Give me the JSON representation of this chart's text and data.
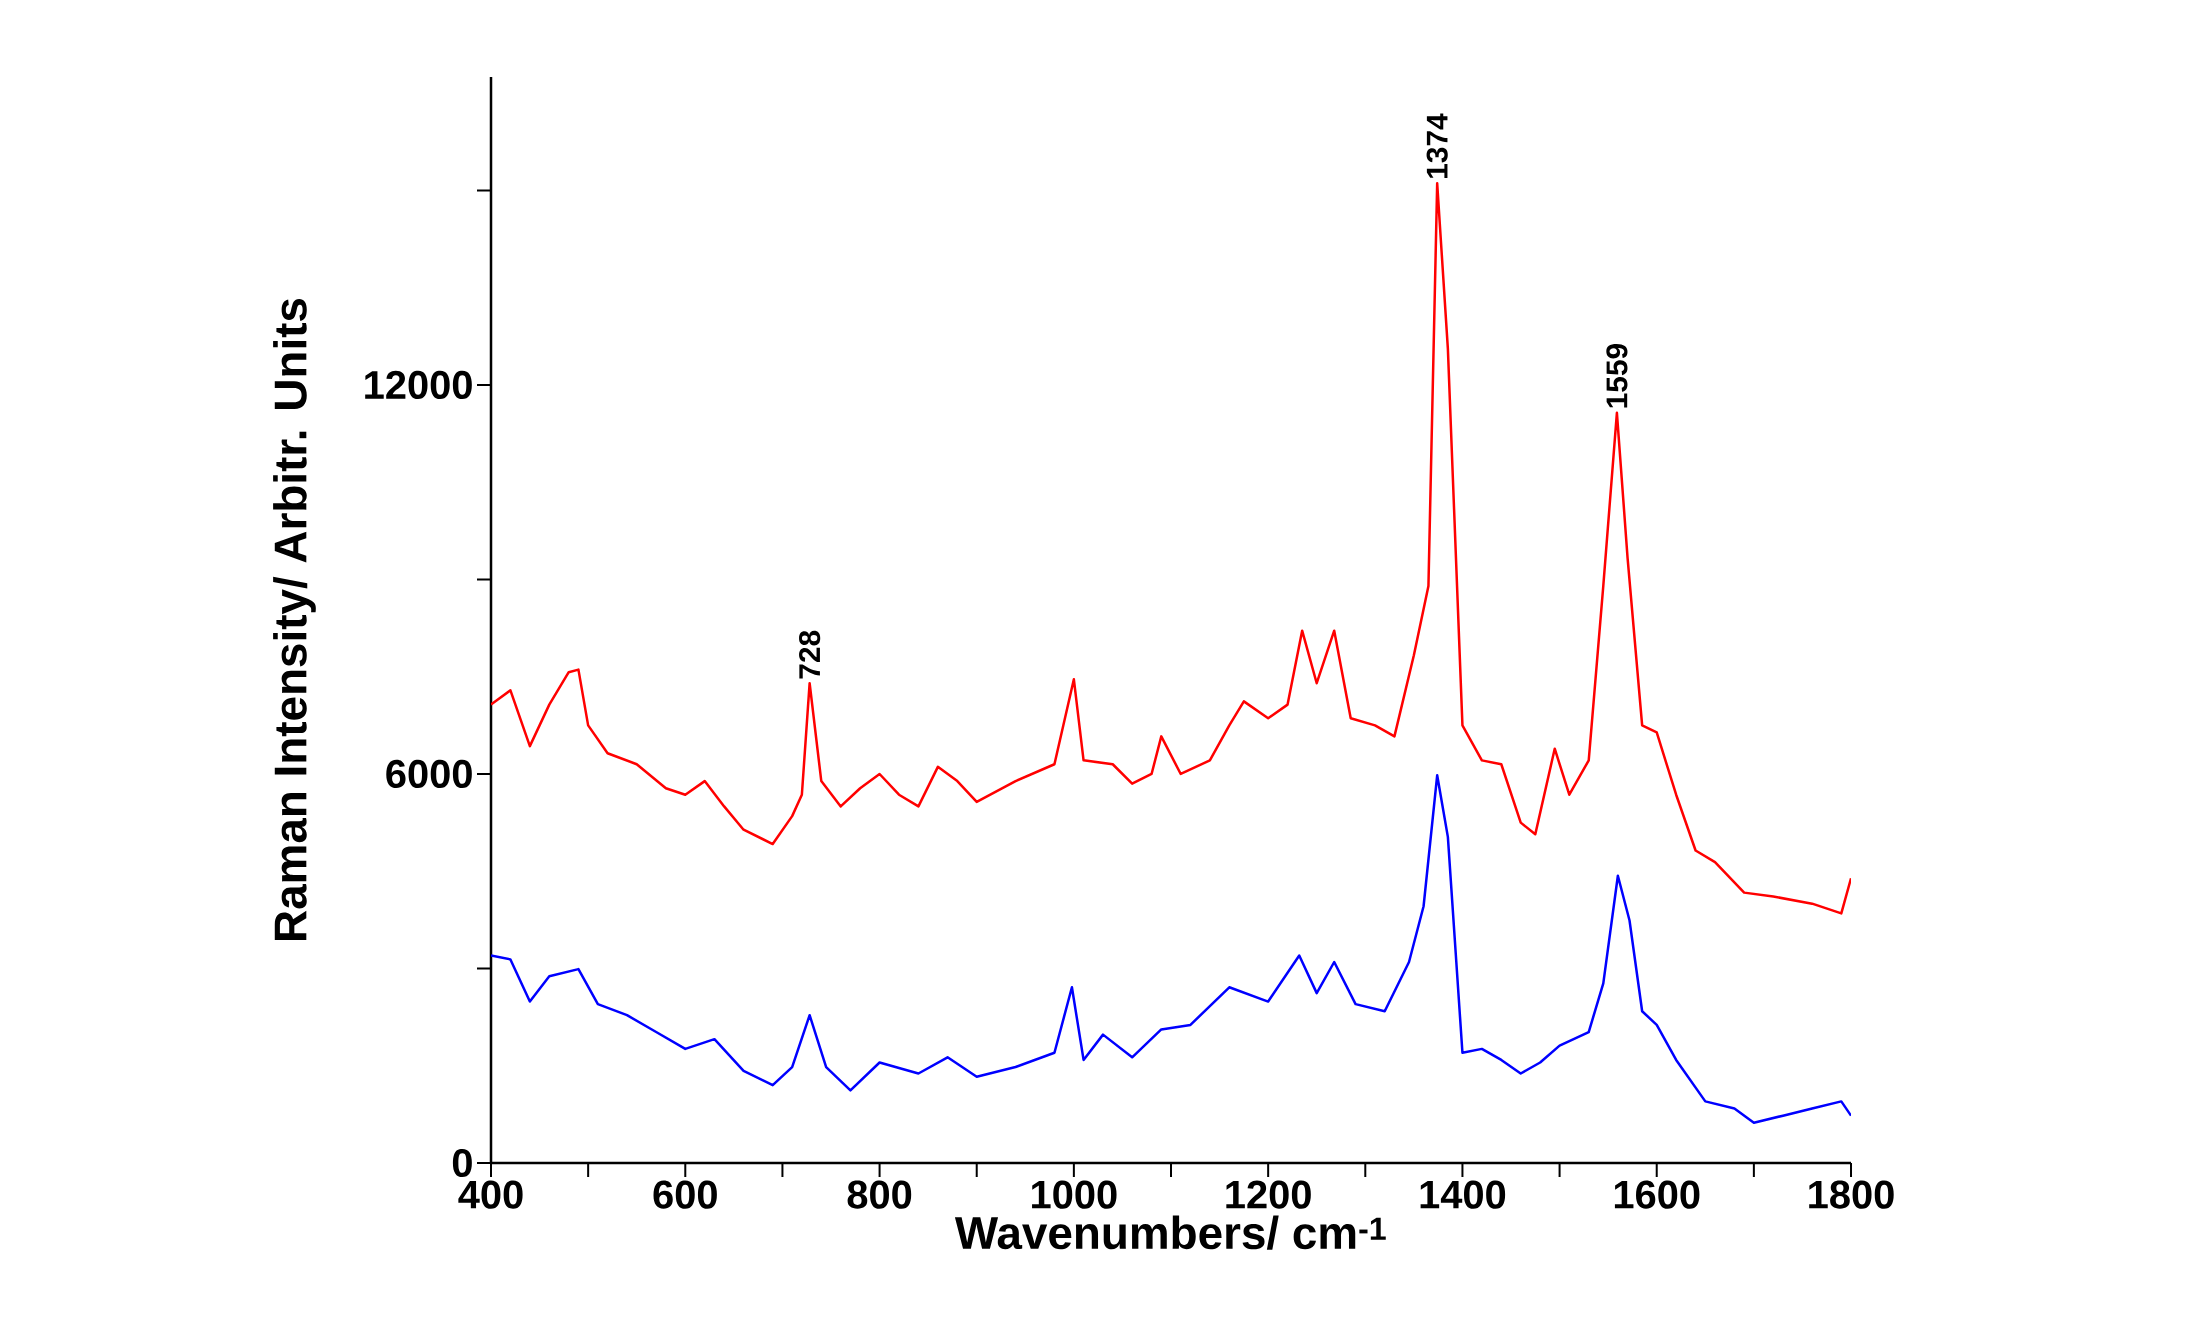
{
  "chart_data": {
    "type": "line",
    "xlabel": "Wavenumbers/ cm$^{-1}$",
    "ylabel": "Raman Intensity/ Arbitr. Units",
    "xlim": [
      400,
      1800
    ],
    "ylim": [
      0,
      16750
    ],
    "xticks": [
      400,
      {
        "value": 500,
        "label": null
      },
      600,
      {
        "value": 700,
        "label": null
      },
      800,
      {
        "value": 900,
        "label": null
      },
      1000,
      {
        "value": 1100,
        "label": null
      },
      1200,
      {
        "value": 1300,
        "label": null
      },
      1400,
      {
        "value": 1500,
        "label": null
      },
      1600,
      {
        "value": 1700,
        "label": null
      },
      1800
    ],
    "yticks": [
      0,
      {
        "value": 3000,
        "label": null
      },
      6000,
      {
        "value": 9000,
        "label": null
      },
      12000,
      {
        "value": 15000,
        "label": null
      }
    ],
    "marker": "none",
    "line_style": "solid",
    "series": [
      {
        "color": "#ff0000",
        "x": [
          400,
          420,
          440,
          460,
          480,
          490,
          500,
          520,
          550,
          580,
          600,
          620,
          640,
          660,
          690,
          710,
          720,
          728,
          740,
          760,
          780,
          800,
          820,
          840,
          860,
          880,
          900,
          940,
          980,
          1000,
          1010,
          1040,
          1060,
          1080,
          1090,
          1110,
          1140,
          1160,
          1175,
          1200,
          1220,
          1235,
          1250,
          1268,
          1285,
          1310,
          1330,
          1350,
          1365,
          1374,
          1385,
          1400,
          1420,
          1440,
          1460,
          1475,
          1495,
          1510,
          1530,
          1545,
          1559,
          1570,
          1585,
          1600,
          1620,
          1640,
          1660,
          1690,
          1720,
          1760,
          1790,
          1800
        ],
        "values": [
          7070,
          7290,
          6430,
          7070,
          7570,
          7610,
          6750,
          6320,
          6150,
          5780,
          5680,
          5890,
          5500,
          5140,
          4920,
          5350,
          5680,
          7400,
          5890,
          5500,
          5780,
          6000,
          5680,
          5500,
          6110,
          5890,
          5570,
          5890,
          6150,
          7460,
          6210,
          6150,
          5850,
          6000,
          6580,
          6000,
          6210,
          6750,
          7120,
          6860,
          7070,
          8210,
          7400,
          8210,
          6860,
          6750,
          6580,
          7830,
          8900,
          15110,
          12560,
          6750,
          6210,
          6150,
          5250,
          5070,
          6390,
          5680,
          6210,
          8900,
          11570,
          9330,
          6750,
          6640,
          5680,
          4820,
          4640,
          4170,
          4110,
          4000,
          3850,
          4390
        ]
      },
      {
        "color": "#0000ff",
        "x": [
          400,
          420,
          440,
          460,
          490,
          510,
          540,
          570,
          600,
          630,
          660,
          690,
          710,
          728,
          745,
          770,
          800,
          840,
          870,
          900,
          940,
          980,
          998,
          1010,
          1030,
          1060,
          1090,
          1120,
          1160,
          1200,
          1232,
          1250,
          1268,
          1290,
          1320,
          1345,
          1360,
          1374,
          1385,
          1400,
          1420,
          1440,
          1460,
          1480,
          1500,
          1530,
          1545,
          1560,
          1572,
          1585,
          1600,
          1620,
          1650,
          1680,
          1700,
          1730,
          1760,
          1790,
          1800
        ],
        "values": [
          3200,
          3140,
          2490,
          2880,
          2990,
          2450,
          2280,
          2020,
          1760,
          1910,
          1420,
          1200,
          1480,
          2280,
          1480,
          1120,
          1550,
          1380,
          1630,
          1330,
          1480,
          1700,
          2710,
          1590,
          1980,
          1630,
          2060,
          2130,
          2710,
          2490,
          3200,
          2620,
          3100,
          2450,
          2340,
          3100,
          3960,
          5980,
          5030,
          1700,
          1760,
          1590,
          1380,
          1550,
          1810,
          2020,
          2770,
          4430,
          3740,
          2340,
          2130,
          1590,
          950,
          840,
          620,
          730,
          840,
          950,
          730
        ]
      }
    ],
    "annotations": [
      {
        "text": "728",
        "x": 728,
        "y": 7400
      },
      {
        "text": "1374",
        "x": 1374,
        "y": 15110
      },
      {
        "text": "1559",
        "x": 1559,
        "y": 11570
      }
    ]
  }
}
